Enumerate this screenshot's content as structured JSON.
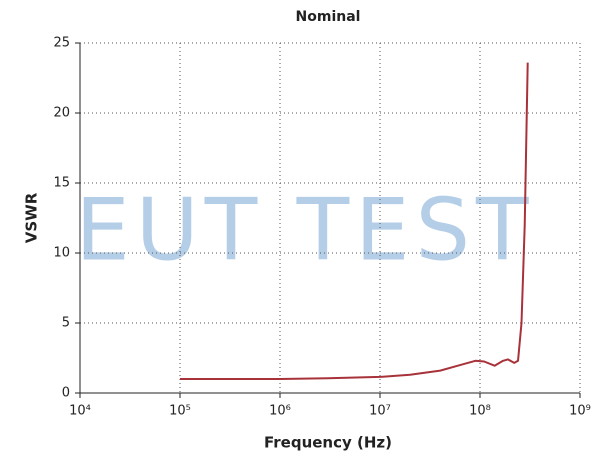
{
  "chart_data": {
    "type": "line",
    "title": "Nominal",
    "xlabel": "Frequency (Hz)",
    "ylabel": "VSWR",
    "watermark": "EUT TEST",
    "xscale": "log",
    "grid": true,
    "color": "#a8323a",
    "x": [
      100000,
      1000000,
      3000000,
      10000000,
      20000000,
      40000000,
      60000000,
      90000000,
      110000000,
      140000000,
      170000000,
      190000000,
      220000000,
      240000000,
      260000000,
      280000000,
      300000000
    ],
    "values": [
      1.0,
      1.0,
      1.05,
      1.15,
      1.3,
      1.6,
      1.95,
      2.3,
      2.25,
      1.95,
      2.3,
      2.4,
      2.15,
      2.3,
      5,
      12,
      23.6
    ],
    "xlim": [
      10000,
      1000000000
    ],
    "xticks": [
      {
        "value": 10000,
        "label": "10⁴"
      },
      {
        "value": 100000,
        "label": "10⁵"
      },
      {
        "value": 1000000,
        "label": "10⁶"
      },
      {
        "value": 10000000,
        "label": "10⁷"
      },
      {
        "value": 100000000,
        "label": "10⁸"
      },
      {
        "value": 1000000000,
        "label": "10⁹"
      }
    ],
    "ylim": [
      0,
      25
    ],
    "yticks": [
      0,
      5,
      10,
      15,
      20,
      25
    ]
  }
}
